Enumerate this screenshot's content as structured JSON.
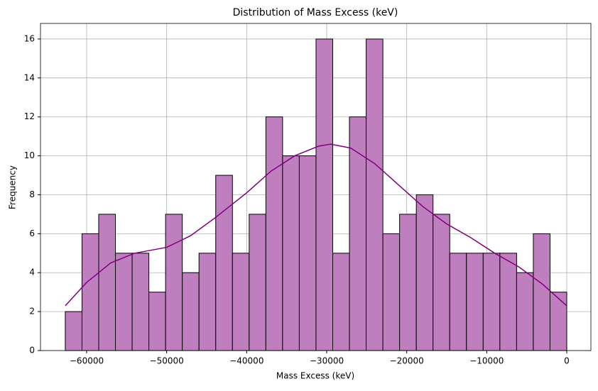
{
  "chart_data": {
    "type": "histogram",
    "title": "Distribution of Mass Excess (keV)",
    "x_label": "Mass Excess (keV)",
    "y_label": "Frequency",
    "bins": [
      -62670,
      -60581,
      -58492,
      -56403,
      -54314,
      -52225,
      -50136,
      -48047,
      -45958,
      -43869,
      -41780,
      -39691,
      -37602,
      -35513,
      -33424,
      -31335,
      -29246,
      -27157,
      -25068,
      -22979,
      -20890,
      -18801,
      -16712,
      -14623,
      -12534,
      -10445,
      -8356,
      -6267,
      -4178,
      -2089,
      0
    ],
    "counts": [
      2,
      6,
      7,
      5,
      5,
      3,
      7,
      4,
      5,
      9,
      5,
      7,
      12,
      10,
      10,
      16,
      5,
      12,
      16,
      6,
      7,
      8,
      7,
      5,
      5,
      5,
      5,
      4,
      6,
      3
    ],
    "color": "#bf7fbf",
    "edge_color": "#000000",
    "kde": {
      "color": "#800080",
      "x": [
        -62670,
        -60000,
        -57000,
        -54000,
        -50000,
        -47000,
        -44000,
        -40000,
        -37000,
        -34000,
        -31000,
        -29500,
        -27000,
        -24000,
        -21000,
        -18000,
        -15000,
        -12000,
        -9000,
        -6000,
        -3000,
        0
      ],
      "y": [
        2.3,
        3.5,
        4.5,
        5,
        5.3,
        5.9,
        6.8,
        8.1,
        9.2,
        10,
        10.5,
        10.6,
        10.4,
        9.6,
        8.5,
        7.4,
        6.5,
        5.8,
        5,
        4.3,
        3.4,
        2.3
      ]
    },
    "xlim": [
      -65770,
      3018
    ],
    "ylim": [
      0,
      16.8
    ],
    "xticks": [
      {
        "value": -60000,
        "label": "−60000"
      },
      {
        "value": -50000,
        "label": "−50000"
      },
      {
        "value": -40000,
        "label": "−40000"
      },
      {
        "value": -30000,
        "label": "−30000"
      },
      {
        "value": -20000,
        "label": "−20000"
      },
      {
        "value": -10000,
        "label": "−10000"
      },
      0
    ],
    "yticks": [
      0,
      2,
      4,
      6,
      8,
      10,
      12,
      14,
      16
    ],
    "grid": true
  }
}
